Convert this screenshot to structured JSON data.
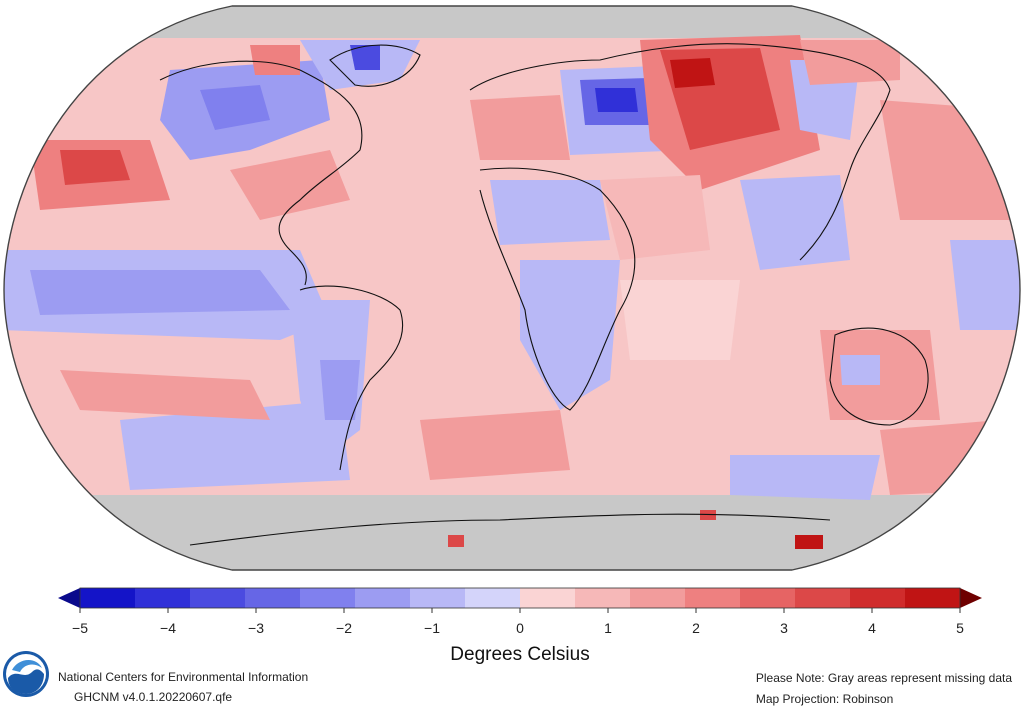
{
  "map": {
    "projection": "Robinson",
    "missing_color": "#c8c8c8",
    "ocean_neutral_color": "#f7c6c6"
  },
  "colorbar": {
    "ticks": [
      "−5",
      "−4",
      "−3",
      "−2",
      "−1",
      "0",
      "1",
      "2",
      "3",
      "4",
      "5"
    ],
    "units": "Degrees Celsius",
    "colors": [
      "#1414c8",
      "#3030d8",
      "#4b4be0",
      "#6666e6",
      "#8080ee",
      "#9c9cf2",
      "#b8b8f6",
      "#d4d4fa",
      "#fad4d4",
      "#f6b8b8",
      "#f29c9c",
      "#ee8080",
      "#e66464",
      "#dc4848",
      "#d02c2c",
      "#c01414"
    ],
    "under_color": "#0a0a8c",
    "over_color": "#6e0000"
  },
  "footer": {
    "organization": "National Centers for Environmental Information",
    "dataset": "GHCNM v4.0.1.20220607.qfe",
    "note": "Please Note: Gray areas represent missing data",
    "projection": "Map Projection: Robinson"
  },
  "logo": {
    "name": "noaa-logo",
    "text": "NOAA"
  }
}
